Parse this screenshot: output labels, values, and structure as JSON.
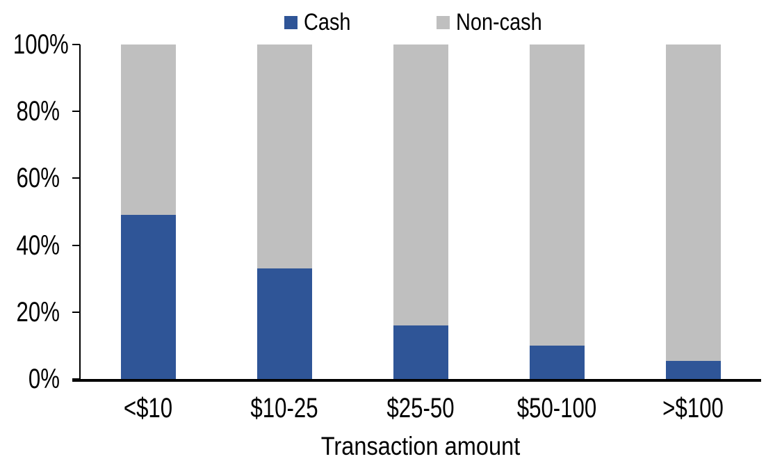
{
  "chart_data": {
    "type": "bar",
    "variant": "stacked-100-percent",
    "categories": [
      "<$10",
      "$10-25",
      "$25-50",
      "$50-100",
      ">$100"
    ],
    "series": [
      {
        "name": "Cash",
        "color": "#2F5597",
        "values": [
          49,
          33,
          16,
          10,
          5.5
        ]
      },
      {
        "name": "Non-cash",
        "color": "#BFBFBF",
        "values": [
          51,
          67,
          84,
          90,
          94.5
        ]
      }
    ],
    "title": "",
    "xlabel": "Transaction amount",
    "ylabel": "",
    "ylim": [
      0,
      100
    ],
    "y_ticks": [
      0,
      20,
      40,
      60,
      80,
      100
    ],
    "y_tick_labels": [
      "0%",
      "20%",
      "40%",
      "60%",
      "80%",
      "100%"
    ],
    "legend_position": "top-center",
    "grid": false,
    "axis_color": "#000000",
    "background_color": "#FFFFFF"
  }
}
